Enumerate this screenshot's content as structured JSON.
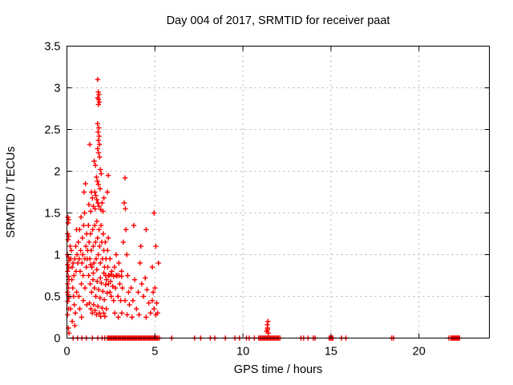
{
  "chart_data": {
    "type": "scatter",
    "title": "Day 004 of 2017, SRMTID for receiver paat",
    "xlabel": "GPS time / hours",
    "ylabel": "SRMTID / TECUs",
    "xlim": [
      0,
      24
    ],
    "ylim": [
      0,
      3.5
    ],
    "xticks": [
      0,
      5,
      10,
      15,
      20
    ],
    "xtick_labels": [
      "0",
      "5",
      "10",
      "15",
      "20"
    ],
    "yticks": [
      0,
      0.5,
      1,
      1.5,
      2,
      2.5,
      3,
      3.5
    ],
    "ytick_labels": [
      "0",
      "0.5",
      "1",
      "1.5",
      "2",
      "2.5",
      "3",
      "3.5"
    ],
    "grid": true,
    "grid_color": "#b4b4b4",
    "axis_color": "#000000",
    "text_color": "#000000",
    "legend": "none",
    "marker": {
      "shape": "plus",
      "color": "#ff0000",
      "size": 7
    },
    "points": [
      [
        0.05,
        1.45
      ],
      [
        0.1,
        1.42
      ],
      [
        0.07,
        1.38
      ],
      [
        0.04,
        1.25
      ],
      [
        0.1,
        1.22
      ],
      [
        0.06,
        1.18
      ],
      [
        0.03,
        1.0
      ],
      [
        0.08,
        0.97
      ],
      [
        0.12,
        0.93
      ],
      [
        0.05,
        0.88
      ],
      [
        0.1,
        0.84
      ],
      [
        0.04,
        0.8
      ],
      [
        0.08,
        0.74
      ],
      [
        0.12,
        0.7
      ],
      [
        0.05,
        0.65
      ],
      [
        0.09,
        0.6
      ],
      [
        0.03,
        0.55
      ],
      [
        0.07,
        0.52
      ],
      [
        0.11,
        0.48
      ],
      [
        0.05,
        0.44
      ],
      [
        0.09,
        0.35
      ],
      [
        0.04,
        0.28
      ],
      [
        0.08,
        0.12
      ],
      [
        0.12,
        0.06
      ],
      [
        0.18,
        1.1
      ],
      [
        0.22,
        0.95
      ],
      [
        0.25,
        1.05
      ],
      [
        0.3,
        0.85
      ],
      [
        0.35,
        0.9
      ],
      [
        0.28,
        0.7
      ],
      [
        0.33,
        0.6
      ],
      [
        0.4,
        0.75
      ],
      [
        0.45,
        0.95
      ],
      [
        0.5,
        1.1
      ],
      [
        0.38,
        0.5
      ],
      [
        0.42,
        0.4
      ],
      [
        0.48,
        0.3
      ],
      [
        0.55,
        0.55
      ],
      [
        0.52,
        0.8
      ],
      [
        0.58,
        1.0
      ],
      [
        0.45,
        0.15
      ],
      [
        0.3,
        0.2
      ],
      [
        0.2,
        0.35
      ],
      [
        0.55,
        1.3
      ],
      [
        0.62,
        0.9
      ],
      [
        0.65,
        1.15
      ],
      [
        0.7,
        0.95
      ],
      [
        0.72,
        1.3
      ],
      [
        0.75,
        0.8
      ],
      [
        0.78,
        1.05
      ],
      [
        0.8,
        1.45
      ],
      [
        0.82,
        0.65
      ],
      [
        0.85,
        0.9
      ],
      [
        0.88,
        1.2
      ],
      [
        0.9,
        1.0
      ],
      [
        0.92,
        0.75
      ],
      [
        0.95,
        1.35
      ],
      [
        0.97,
        1.75
      ],
      [
        1.0,
        1.5
      ],
      [
        1.02,
        0.95
      ],
      [
        1.05,
        1.85
      ],
      [
        1.08,
        1.1
      ],
      [
        1.1,
        0.85
      ],
      [
        1.12,
        1.25
      ],
      [
        1.15,
        0.95
      ],
      [
        1.18,
        1.05
      ],
      [
        0.68,
        0.5
      ],
      [
        0.73,
        0.35
      ],
      [
        0.83,
        0.25
      ],
      [
        0.93,
        0.45
      ],
      [
        1.03,
        0.6
      ],
      [
        1.13,
        0.4
      ],
      [
        1.75,
        3.1
      ],
      [
        1.78,
        2.95
      ],
      [
        1.82,
        2.92
      ],
      [
        1.76,
        2.88
      ],
      [
        1.8,
        2.86
      ],
      [
        1.84,
        2.83
      ],
      [
        1.79,
        2.8
      ],
      [
        1.74,
        2.57
      ],
      [
        1.81,
        2.52
      ],
      [
        1.77,
        2.47
      ],
      [
        1.83,
        2.42
      ],
      [
        1.79,
        2.37
      ],
      [
        1.85,
        2.32
      ],
      [
        1.3,
        2.32
      ],
      [
        1.74,
        2.27
      ],
      [
        1.8,
        2.22
      ],
      [
        1.86,
        2.17
      ],
      [
        1.55,
        2.12
      ],
      [
        1.62,
        2.07
      ],
      [
        1.9,
        2.02
      ],
      [
        1.95,
        1.97
      ],
      [
        1.68,
        1.93
      ],
      [
        1.73,
        1.88
      ],
      [
        1.79,
        1.84
      ],
      [
        1.88,
        1.79
      ],
      [
        1.58,
        1.75
      ],
      [
        1.64,
        1.71
      ],
      [
        1.7,
        1.66
      ],
      [
        1.76,
        1.62
      ],
      [
        1.82,
        1.58
      ],
      [
        1.92,
        1.54
      ],
      [
        1.45,
        1.68
      ],
      [
        1.5,
        1.58
      ],
      [
        1.35,
        1.52
      ],
      [
        2.0,
        1.62
      ],
      [
        2.05,
        1.52
      ],
      [
        1.25,
        1.6
      ],
      [
        1.4,
        1.75
      ],
      [
        2.1,
        1.68
      ],
      [
        1.6,
        1.55
      ],
      [
        1.22,
        1.35
      ],
      [
        1.26,
        1.15
      ],
      [
        1.3,
        0.95
      ],
      [
        1.34,
        1.25
      ],
      [
        1.38,
        1.05
      ],
      [
        1.42,
        0.85
      ],
      [
        1.46,
        1.3
      ],
      [
        1.5,
        1.1
      ],
      [
        1.54,
        0.9
      ],
      [
        1.58,
        1.35
      ],
      [
        1.62,
        1.15
      ],
      [
        1.66,
        0.95
      ],
      [
        1.7,
        1.4
      ],
      [
        1.74,
        1.2
      ],
      [
        1.78,
        1.0
      ],
      [
        1.82,
        1.3
      ],
      [
        1.86,
        1.1
      ],
      [
        1.9,
        0.9
      ],
      [
        1.94,
        1.35
      ],
      [
        1.98,
        1.15
      ],
      [
        2.02,
        0.95
      ],
      [
        2.06,
        1.25
      ],
      [
        2.1,
        1.05
      ],
      [
        2.14,
        0.85
      ],
      [
        2.18,
        1.15
      ],
      [
        2.22,
        0.95
      ],
      [
        1.24,
        0.75
      ],
      [
        1.32,
        0.65
      ],
      [
        1.4,
        0.55
      ],
      [
        1.48,
        0.7
      ],
      [
        1.56,
        0.6
      ],
      [
        1.64,
        0.5
      ],
      [
        1.72,
        0.68
      ],
      [
        1.8,
        0.58
      ],
      [
        1.88,
        0.48
      ],
      [
        1.96,
        0.66
      ],
      [
        2.04,
        0.56
      ],
      [
        2.12,
        0.46
      ],
      [
        2.2,
        0.64
      ],
      [
        2.28,
        0.54
      ],
      [
        1.28,
        0.42
      ],
      [
        1.36,
        0.35
      ],
      [
        1.44,
        0.3
      ],
      [
        1.52,
        0.4
      ],
      [
        1.6,
        0.33
      ],
      [
        1.68,
        0.28
      ],
      [
        1.76,
        0.38
      ],
      [
        1.84,
        0.3
      ],
      [
        1.92,
        0.26
      ],
      [
        2.0,
        0.36
      ],
      [
        2.08,
        0.3
      ],
      [
        2.16,
        0.26
      ],
      [
        2.24,
        0.35
      ],
      [
        2.32,
        0.85
      ],
      [
        2.36,
        0.65
      ],
      [
        2.4,
        0.75
      ],
      [
        2.44,
        0.55
      ],
      [
        2.48,
        0.68
      ],
      [
        2.52,
        0.5
      ],
      [
        2.3,
        1.05
      ],
      [
        2.35,
        1.2
      ],
      [
        2.45,
        0.95
      ],
      [
        2.55,
        0.8
      ],
      [
        2.6,
        0.62
      ],
      [
        1.5,
        0.78
      ],
      [
        1.7,
        0.82
      ],
      [
        1.9,
        0.72
      ],
      [
        2.1,
        0.78
      ],
      [
        2.25,
        0.7
      ],
      [
        1.35,
        0.88
      ],
      [
        2.35,
        1.95
      ],
      [
        2.3,
        1.75
      ],
      [
        2.65,
        0.45
      ],
      [
        2.7,
        0.85
      ],
      [
        2.75,
        0.6
      ],
      [
        2.8,
        1.0
      ],
      [
        2.85,
        0.75
      ],
      [
        2.9,
        0.5
      ],
      [
        2.95,
        0.9
      ],
      [
        3.0,
        0.65
      ],
      [
        3.05,
        0.45
      ],
      [
        3.1,
        0.8
      ],
      [
        3.15,
        0.6
      ],
      [
        3.2,
        1.15
      ],
      [
        3.25,
        1.62
      ],
      [
        3.3,
        1.92
      ],
      [
        3.32,
        1.55
      ],
      [
        3.35,
        1.3
      ],
      [
        3.4,
        1.0
      ],
      [
        3.45,
        0.75
      ],
      [
        3.5,
        0.55
      ],
      [
        3.55,
        0.4
      ],
      [
        2.72,
        0.3
      ],
      [
        2.92,
        0.25
      ],
      [
        3.12,
        0.3
      ],
      [
        3.42,
        0.28
      ],
      [
        3.3,
        0.45
      ],
      [
        3.65,
        0.6
      ],
      [
        3.75,
        0.45
      ],
      [
        3.85,
        0.7
      ],
      [
        3.95,
        0.35
      ],
      [
        4.05,
        0.55
      ],
      [
        4.15,
        0.9
      ],
      [
        4.25,
        0.65
      ],
      [
        4.35,
        0.5
      ],
      [
        4.45,
        0.72
      ],
      [
        4.55,
        0.58
      ],
      [
        4.65,
        0.42
      ],
      [
        4.75,
        0.3
      ],
      [
        4.85,
        0.45
      ],
      [
        4.95,
        0.35
      ],
      [
        5.05,
        0.28
      ],
      [
        5.1,
        0.42
      ],
      [
        5.15,
        0.3
      ],
      [
        3.7,
        0.25
      ],
      [
        4.1,
        0.28
      ],
      [
        4.5,
        0.25
      ],
      [
        4.9,
        0.55
      ],
      [
        5.0,
        0.6
      ],
      [
        4.95,
        1.5
      ],
      [
        5.05,
        1.1
      ],
      [
        4.2,
        1.1
      ],
      [
        3.8,
        1.35
      ],
      [
        4.5,
        1.3
      ],
      [
        4.85,
        0.85
      ],
      [
        5.2,
        0.9
      ],
      [
        2.2,
        0.75
      ],
      [
        2.35,
        0.75
      ],
      [
        2.5,
        0.76
      ],
      [
        2.65,
        0.74
      ],
      [
        2.8,
        0.75
      ],
      [
        2.95,
        0.75
      ],
      [
        3.1,
        0.74
      ],
      [
        11.35,
        0.08
      ],
      [
        11.4,
        0.12
      ],
      [
        11.42,
        0.2
      ],
      [
        11.38,
        0.16
      ],
      [
        11.44,
        0.06
      ],
      [
        11.4,
        0.1
      ],
      [
        0.35,
        0
      ],
      [
        0.6,
        0
      ],
      [
        0.85,
        0
      ],
      [
        1.1,
        0
      ],
      [
        1.45,
        0
      ],
      [
        1.75,
        0
      ],
      [
        2.0,
        0
      ],
      [
        2.15,
        0
      ],
      [
        2.3,
        0
      ],
      [
        2.37,
        0
      ],
      [
        2.43,
        0
      ],
      [
        2.5,
        0
      ],
      [
        2.56,
        0
      ],
      [
        2.63,
        0
      ],
      [
        2.69,
        0
      ],
      [
        2.76,
        0
      ],
      [
        2.82,
        0
      ],
      [
        2.89,
        0
      ],
      [
        2.95,
        0
      ],
      [
        3.02,
        0
      ],
      [
        3.08,
        0
      ],
      [
        3.15,
        0
      ],
      [
        3.21,
        0
      ],
      [
        3.28,
        0
      ],
      [
        3.34,
        0
      ],
      [
        3.41,
        0
      ],
      [
        3.47,
        0
      ],
      [
        3.54,
        0
      ],
      [
        3.6,
        0
      ],
      [
        3.67,
        0
      ],
      [
        3.73,
        0
      ],
      [
        3.8,
        0
      ],
      [
        3.86,
        0
      ],
      [
        3.93,
        0
      ],
      [
        3.99,
        0
      ],
      [
        4.06,
        0
      ],
      [
        4.12,
        0
      ],
      [
        4.19,
        0
      ],
      [
        4.25,
        0
      ],
      [
        4.32,
        0
      ],
      [
        4.38,
        0
      ],
      [
        4.45,
        0
      ],
      [
        4.51,
        0
      ],
      [
        4.58,
        0
      ],
      [
        4.64,
        0
      ],
      [
        4.71,
        0
      ],
      [
        4.77,
        0
      ],
      [
        4.84,
        0
      ],
      [
        4.9,
        0
      ],
      [
        4.97,
        0
      ],
      [
        5.03,
        0
      ],
      [
        5.1,
        0
      ],
      [
        5.16,
        0
      ],
      [
        5.25,
        0
      ],
      [
        5.95,
        0
      ],
      [
        7.25,
        0
      ],
      [
        7.6,
        0
      ],
      [
        8.15,
        0
      ],
      [
        8.4,
        0
      ],
      [
        9.0,
        0
      ],
      [
        9.55,
        0
      ],
      [
        9.8,
        0
      ],
      [
        10.2,
        0
      ],
      [
        10.35,
        0
      ],
      [
        10.65,
        0
      ],
      [
        10.9,
        0
      ],
      [
        10.97,
        0
      ],
      [
        11.04,
        0
      ],
      [
        11.11,
        0
      ],
      [
        11.18,
        0
      ],
      [
        11.25,
        0
      ],
      [
        11.32,
        0
      ],
      [
        11.39,
        0
      ],
      [
        11.46,
        0
      ],
      [
        11.53,
        0
      ],
      [
        11.6,
        0
      ],
      [
        11.67,
        0
      ],
      [
        11.74,
        0
      ],
      [
        11.81,
        0
      ],
      [
        11.88,
        0
      ],
      [
        11.95,
        0
      ],
      [
        12.02,
        0
      ],
      [
        12.1,
        0
      ],
      [
        13.3,
        0
      ],
      [
        13.45,
        0
      ],
      [
        13.7,
        0
      ],
      [
        14.0,
        0
      ],
      [
        14.1,
        0
      ],
      [
        14.9,
        0
      ],
      [
        14.97,
        0
      ],
      [
        15.04,
        0
      ],
      [
        15.11,
        0
      ],
      [
        15.6,
        0
      ],
      [
        15.85,
        0
      ],
      [
        18.45,
        0
      ],
      [
        18.55,
        0
      ],
      [
        21.7,
        0
      ],
      [
        21.82,
        0
      ],
      [
        21.88,
        0
      ],
      [
        21.94,
        0
      ],
      [
        22.0,
        0
      ],
      [
        22.06,
        0
      ],
      [
        22.12,
        0
      ],
      [
        22.18,
        0
      ],
      [
        22.24,
        0
      ],
      [
        22.3,
        0
      ]
    ]
  }
}
